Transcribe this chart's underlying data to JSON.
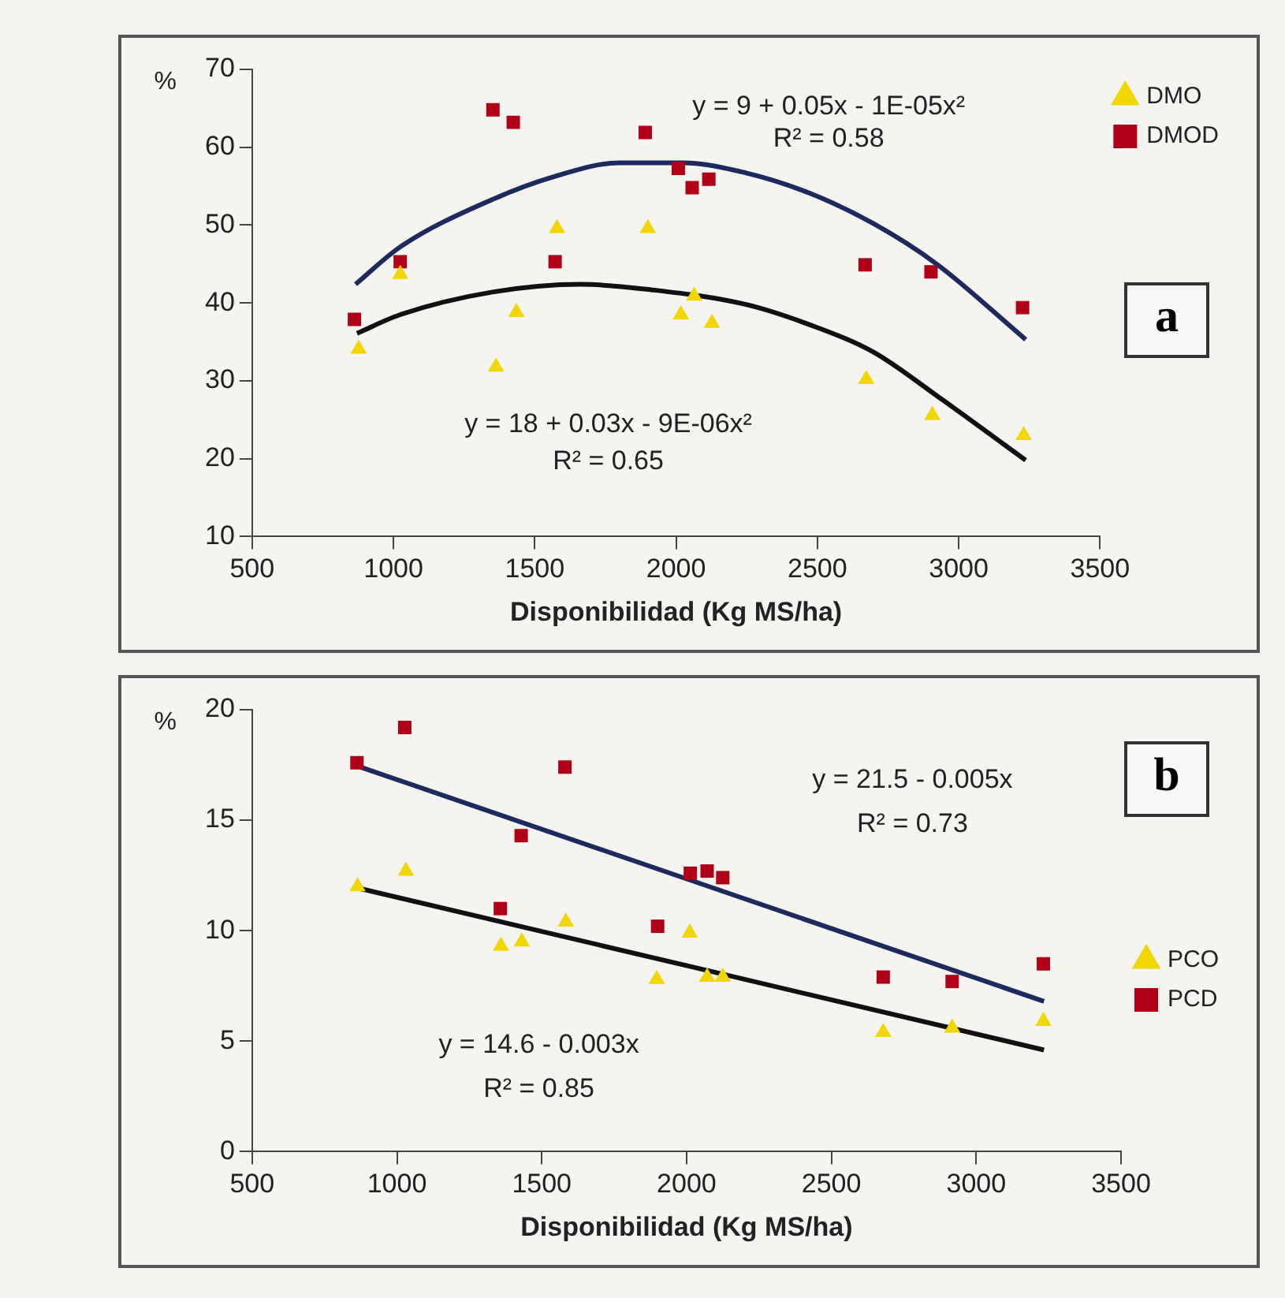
{
  "chart_data": [
    {
      "type": "scatter",
      "xlabel": "Disponibilidad (Kg MS/ha)",
      "ylabel": "%",
      "xlim": [
        500,
        3500
      ],
      "xticks": [
        500,
        1000,
        1500,
        2000,
        2500,
        3000,
        3500
      ],
      "ylim": [
        10,
        70
      ],
      "yticks": [
        10,
        20,
        30,
        40,
        50,
        60,
        70
      ],
      "grid": false,
      "legend": "right",
      "series": [
        {
          "name": "DMO",
          "marker": "triangle",
          "color": "#f2d600",
          "x": [
            877,
            1024,
            1363,
            1435,
            1579,
            1900,
            2017,
            2064,
            2127,
            2673,
            2907,
            3230
          ],
          "values": [
            34.1,
            43.7,
            31.8,
            38.8,
            49.6,
            49.6,
            38.5,
            40.9,
            37.4,
            30.2,
            25.6,
            23.0
          ]
        },
        {
          "name": "DMOD",
          "marker": "square",
          "color": "#b00018",
          "x": [
            862,
            1024,
            1352,
            1424,
            1572,
            1891,
            2008,
            2057,
            2116,
            2669,
            2902,
            3226
          ],
          "values": [
            37.9,
            45.3,
            64.8,
            63.2,
            45.3,
            61.9,
            57.3,
            54.8,
            55.9,
            44.9,
            44.0,
            39.4
          ]
        },
        {
          "type": "line",
          "marker": "none",
          "color": "#1c2a5e",
          "x": [
            866,
            1024,
            1350,
            1574,
            1799,
            2024,
            2248,
            2473,
            2698,
            2922,
            3237
          ],
          "values": [
            42.4,
            47.2,
            53.3,
            56.3,
            58.0,
            58.0,
            56.7,
            54.1,
            50.2,
            45.0,
            35.3
          ]
        },
        {
          "type": "line",
          "marker": "none",
          "color": "#111111",
          "x": [
            871,
            1024,
            1350,
            1664,
            1911,
            2248,
            2473,
            2698,
            2922,
            3237
          ],
          "values": [
            36.1,
            38.5,
            41.4,
            42.4,
            41.7,
            39.8,
            37.2,
            33.7,
            28.1,
            19.8
          ]
        }
      ],
      "annotations": [
        "y = 9 + 0.05x - 1E-05x²",
        "R² = 0.58",
        "y = 18 + 0.03x - 9E-06x²",
        "R² = 0.65",
        "a"
      ]
    },
    {
      "type": "scatter",
      "xlabel": "Disponibilidad (Kg MS/ha)",
      "ylabel": "%",
      "xlim": [
        500,
        3500
      ],
      "xticks": [
        500,
        1000,
        1500,
        2000,
        2500,
        3000,
        3500
      ],
      "ylim": [
        0,
        20
      ],
      "yticks": [
        0,
        5,
        10,
        15,
        20
      ],
      "grid": false,
      "legend": "right",
      "series": [
        {
          "name": "PCO",
          "marker": "triangle",
          "color": "#f2d600",
          "x": [
            864,
            1031,
            1359,
            1431,
            1583,
            1897,
            2011,
            2071,
            2125,
            2679,
            2917,
            3232
          ],
          "values": [
            12.0,
            12.7,
            9.3,
            9.5,
            10.4,
            7.8,
            9.9,
            7.9,
            7.9,
            5.4,
            5.6,
            5.9
          ]
        },
        {
          "name": "PCD",
          "marker": "square",
          "color": "#b00018",
          "x": [
            862,
            1027,
            1357,
            1429,
            1580,
            1900,
            2013,
            2071,
            2125,
            2679,
            2917,
            3232
          ],
          "values": [
            17.6,
            19.2,
            11.0,
            14.3,
            17.4,
            10.2,
            12.6,
            12.7,
            12.4,
            7.9,
            7.7,
            8.5
          ]
        },
        {
          "type": "line",
          "marker": "none",
          "color": "#1c2a5e",
          "x": [
            875,
            3234
          ],
          "values": [
            17.4,
            6.8
          ]
        },
        {
          "type": "line",
          "marker": "none",
          "color": "#111111",
          "x": [
            875,
            3234
          ],
          "values": [
            11.9,
            4.6
          ]
        }
      ],
      "annotations": [
        "y = 21.5 - 0.005x",
        "R² = 0.73",
        "y = 14.6 - 0.003x",
        "R² = 0.85",
        "b"
      ]
    }
  ]
}
